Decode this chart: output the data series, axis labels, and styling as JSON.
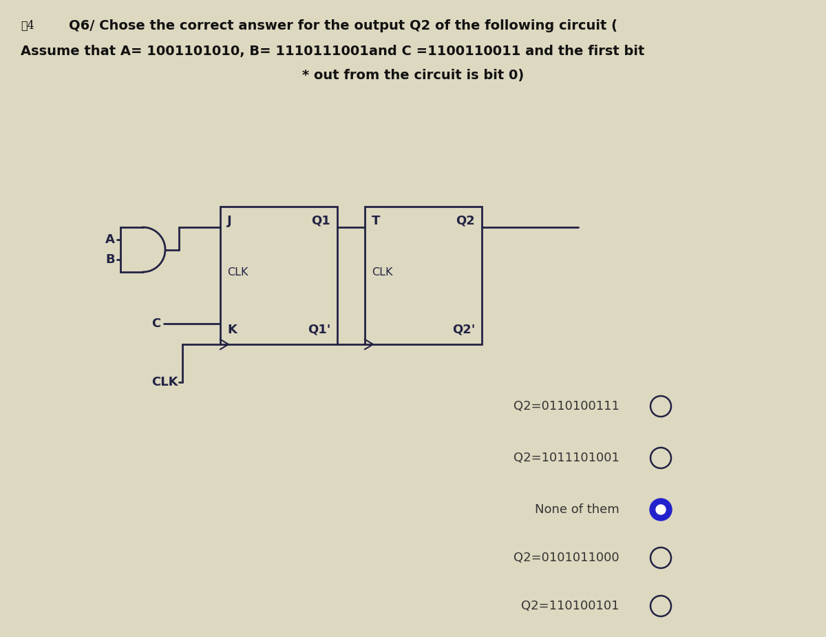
{
  "bg_color": "#ddd8c0",
  "title_line1": "Q6/ Chose the correct answer for the output Q2 of the following circuit (",
  "title_line2": "Assume that A= 1001101010, B= 1110111001and C =1100110011 and the first bit",
  "title_line3": "* out from the circuit is bit 0)",
  "label_num": "ڃ4",
  "options": [
    {
      "text": "Q2=0110100111",
      "selected": false
    },
    {
      "text": "Q2=1011101001",
      "selected": false
    },
    {
      "text": "None of them",
      "selected": true
    },
    {
      "text": "Q2=0101011000",
      "selected": false
    },
    {
      "text": "Q2=110100101",
      "selected": false
    }
  ],
  "text_color": "#333333",
  "line_color": "#222244",
  "title_color": "#111111",
  "font_size_title": 14,
  "font_size_body": 13,
  "font_size_small": 11.5,
  "selected_color": "#2222cc"
}
